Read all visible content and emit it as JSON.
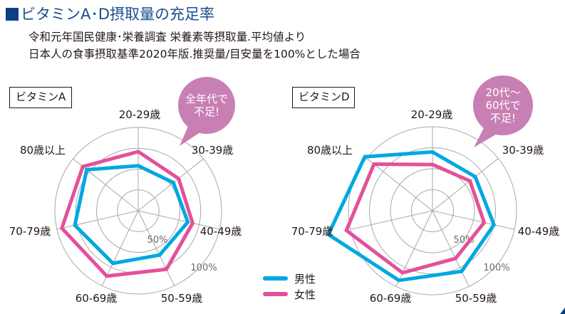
{
  "header": {
    "title": "ビタミンA･D摂取量の充足率",
    "subtitle_line1": "令和元年国民健康･栄養調査 栄養素等摂取量.平均値より",
    "subtitle_line2": "日本人の食事摂取基準2020年版.推奨量/目安量を100%とした場合"
  },
  "colors": {
    "title": "#1a4d8f",
    "title_square": "#0e3f86",
    "male": "#00a8e0",
    "female": "#e4509a",
    "bubble": "#c87fb3",
    "grid": "#a8a8a8"
  },
  "legend": {
    "male": "男性",
    "female": "女性"
  },
  "chart_data": [
    {
      "type": "radar",
      "title": "ビタミンA",
      "categories": [
        "20-29歳",
        "30-39歳",
        "40-49歳",
        "50-59歳",
        "60-69歳",
        "70-79歳",
        "80歳以上"
      ],
      "unit": "%",
      "rlim": [
        0,
        100
      ],
      "rings": [
        25,
        50,
        75,
        100
      ],
      "ring_labels": [
        "50%",
        "100%"
      ],
      "series": [
        {
          "name": "男性",
          "values": [
            54,
            54,
            61,
            59,
            70,
            78,
            79
          ]
        },
        {
          "name": "女性",
          "values": [
            71,
            62,
            67,
            78,
            87,
            94,
            85
          ]
        }
      ],
      "annotation": "全年代で\n不足!"
    },
    {
      "type": "radar",
      "title": "ビタミンD",
      "categories": [
        "20-29歳",
        "30-39歳",
        "40-49歳",
        "50-59歳",
        "60-69歳",
        "70-79歳",
        "80歳以上"
      ],
      "unit": "%",
      "rlim": [
        0,
        100
      ],
      "rings": [
        25,
        50,
        75,
        100
      ],
      "ring_labels": [
        "50%",
        "100%"
      ],
      "series": [
        {
          "name": "男性",
          "values": [
            70,
            65,
            75,
            80,
            92,
            127,
            103
          ]
        },
        {
          "name": "女性",
          "values": [
            55,
            57,
            63,
            63,
            82,
            105,
            89
          ]
        }
      ],
      "annotation": "20代～\n60代で\n不足!"
    }
  ]
}
